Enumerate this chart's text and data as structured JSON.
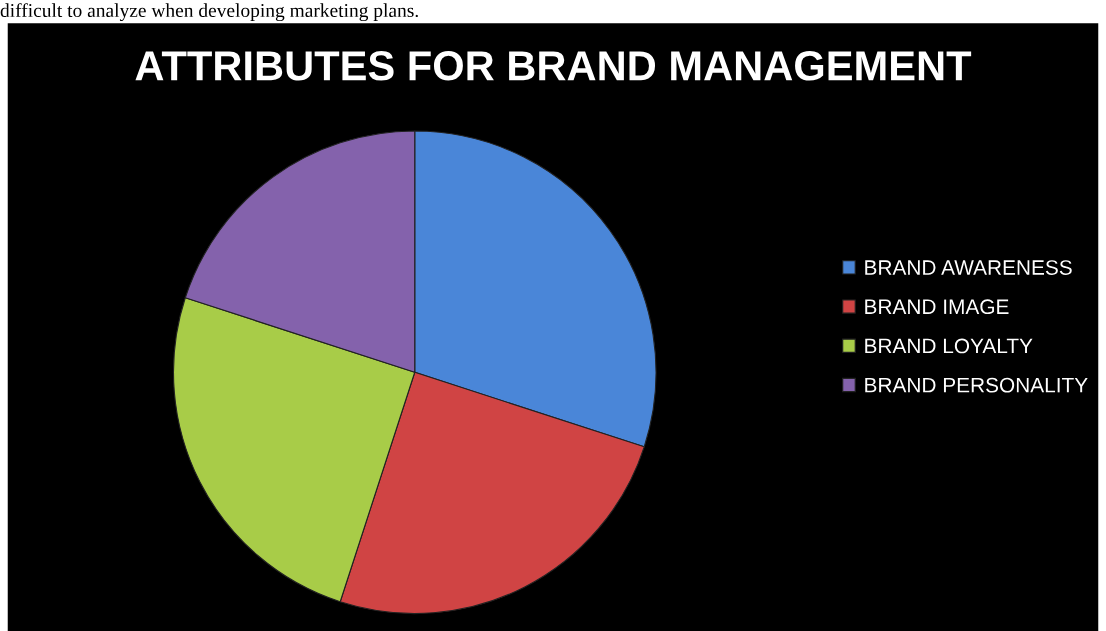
{
  "chart_data": {
    "type": "pie",
    "title": "ATTRIBUTES FOR BRAND MANAGEMENT",
    "categories": [
      "BRAND AWARENESS",
      "BRAND IMAGE",
      "BRAND LOYALTY",
      "BRAND PERSONALITY"
    ],
    "values": [
      30,
      25,
      25,
      20
    ],
    "colors": [
      "#4a86d8",
      "#d04444",
      "#a8cc48",
      "#8462ac"
    ],
    "legend": "right",
    "annotations": [
      "difficult to analyze when developing marketing plans."
    ]
  }
}
